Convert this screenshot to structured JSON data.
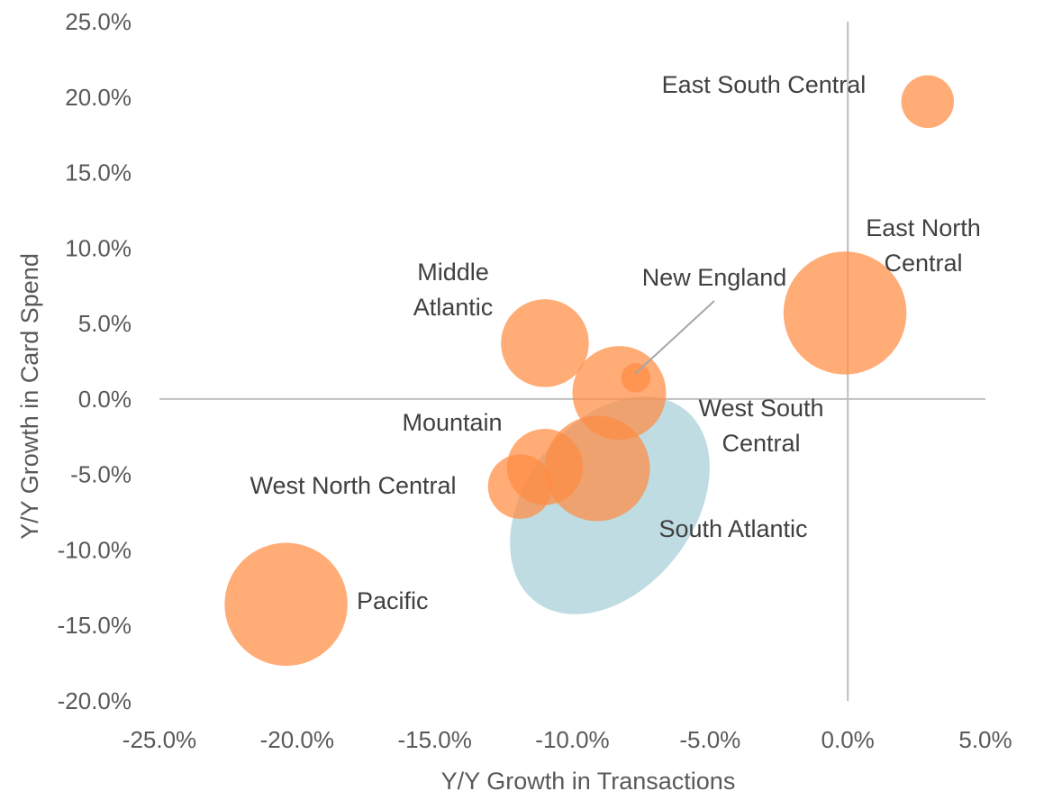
{
  "chart_data": {
    "type": "bubble",
    "xlabel": "Y/Y Growth in Transactions",
    "ylabel": "Y/Y Growth in Card Spend",
    "xlim": [
      -25.0,
      5.0
    ],
    "ylim": [
      -20.0,
      25.0
    ],
    "x_ticks": [
      "-25.0%",
      "-20.0%",
      "-15.0%",
      "-10.0%",
      "-5.0%",
      "0.0%",
      "5.0%"
    ],
    "y_ticks": [
      "25.0%",
      "20.0%",
      "15.0%",
      "10.0%",
      "5.0%",
      "0.0%",
      "-5.0%",
      "-10.0%",
      "-15.0%",
      "-20.0%"
    ],
    "grid": false,
    "bubble_color": "#FF8C42",
    "highlight_color": "#A8D0D8",
    "leader_line_color": "#A6A6A6",
    "axis_color": "#BFBFBF",
    "points": [
      {
        "name": "East South Central",
        "label_lines": [
          "East South Central"
        ],
        "x": 2.9,
        "y": 19.7,
        "size": 4.5
      },
      {
        "name": "East North Central",
        "label_lines": [
          "East North",
          "Central"
        ],
        "x": -0.1,
        "y": 5.7,
        "size": 10.5
      },
      {
        "name": "Middle Atlantic",
        "label_lines": [
          "Middle",
          "Atlantic"
        ],
        "x": -11.0,
        "y": 3.7,
        "size": 7.5
      },
      {
        "name": "New England",
        "label_lines": [
          "New England"
        ],
        "x": -7.7,
        "y": 1.4,
        "size": 2.5
      },
      {
        "name": "West South Central",
        "label_lines": [
          "West South",
          "Central"
        ],
        "x": -8.3,
        "y": 0.4,
        "size": 8.0
      },
      {
        "name": "South Atlantic",
        "label_lines": [
          "South Atlantic"
        ],
        "x": -9.1,
        "y": -4.6,
        "size": 9.0
      },
      {
        "name": "Mountain",
        "label_lines": [
          "Mountain"
        ],
        "x": -11.0,
        "y": -4.5,
        "size": 6.5
      },
      {
        "name": "West North Central",
        "label_lines": [
          "West North Central"
        ],
        "x": -11.9,
        "y": -5.8,
        "size": 5.5
      },
      {
        "name": "Pacific",
        "label_lines": [
          "Pacific"
        ],
        "x": -20.4,
        "y": -13.6,
        "size": 10.5
      }
    ]
  }
}
